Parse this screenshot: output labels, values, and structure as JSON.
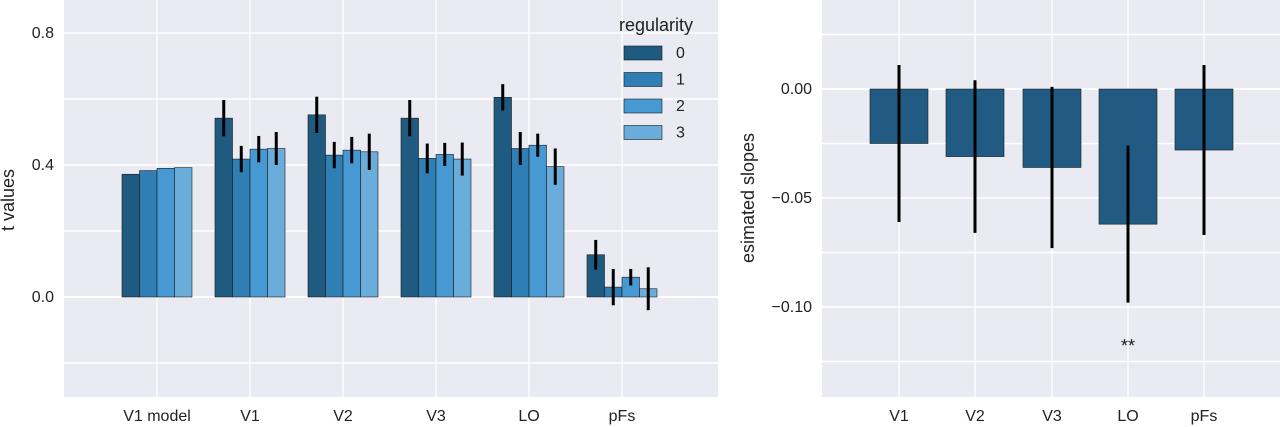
{
  "chart_data": [
    {
      "type": "bar",
      "title": "",
      "xlabel": "",
      "ylabel": "t values",
      "ylim": [
        -0.3,
        0.9
      ],
      "yticks": [
        "0.0",
        "0.4",
        "0.8"
      ],
      "ytick_values": [
        0.0,
        0.4,
        0.8
      ],
      "grid": true,
      "legend": {
        "title": "regularity",
        "placement": "top-right"
      },
      "categories": [
        "V1 model",
        "V1",
        "V2",
        "V3",
        "LO",
        "pFs"
      ],
      "series": [
        {
          "name": "0",
          "color": "#1f5a80",
          "values": [
            0.372,
            0.542,
            0.552,
            0.542,
            0.605,
            0.128
          ],
          "errors": [
            null,
            0.055,
            0.055,
            0.055,
            0.04,
            0.045
          ]
        },
        {
          "name": "1",
          "color": "#2f7fb5",
          "values": [
            0.383,
            0.418,
            0.43,
            0.42,
            0.45,
            0.03
          ],
          "errors": [
            null,
            0.04,
            0.04,
            0.045,
            0.05,
            0.055
          ]
        },
        {
          "name": "2",
          "color": "#4699d3",
          "values": [
            0.39,
            0.448,
            0.445,
            0.432,
            0.46,
            0.06
          ],
          "errors": [
            null,
            0.04,
            0.04,
            0.035,
            0.035,
            0.025
          ]
        },
        {
          "name": "3",
          "color": "#6aaddb",
          "values": [
            0.392,
            0.45,
            0.44,
            0.418,
            0.395,
            0.025
          ],
          "errors": [
            null,
            0.05,
            0.055,
            0.05,
            0.055,
            0.065
          ]
        }
      ]
    },
    {
      "type": "bar",
      "title": "",
      "xlabel": "",
      "ylabel": "esimated slopes",
      "ylim": [
        -0.14,
        0.04
      ],
      "yticks": [
        "0.00",
        "−0.05",
        "−0.10"
      ],
      "ytick_values": [
        0.0,
        -0.05,
        -0.1
      ],
      "grid": true,
      "categories": [
        "V1",
        "V2",
        "V3",
        "LO",
        "pFs"
      ],
      "color": "#215b83",
      "values": [
        -0.025,
        -0.031,
        -0.036,
        -0.062,
        -0.028
      ],
      "errors": [
        0.036,
        0.035,
        0.037,
        0.036,
        0.039
      ],
      "annotations": [
        {
          "category": "LO",
          "text": "**"
        }
      ]
    }
  ]
}
